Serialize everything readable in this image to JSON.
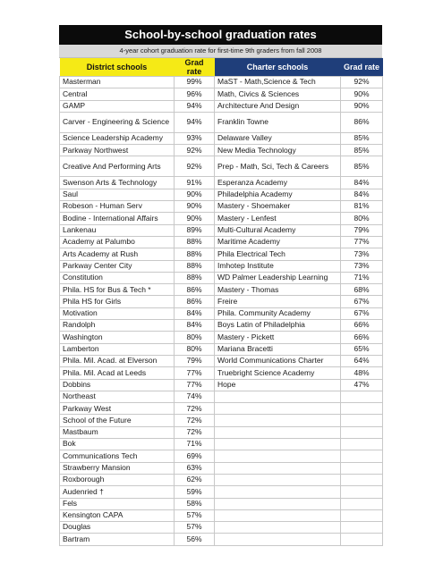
{
  "title": "School-by-school graduation rates",
  "subtitle": "4-year cohort graduation rate for first-time 9th graders from fall 2008",
  "headers": {
    "district": "District schools",
    "district_rate": "Grad rate",
    "charter": "Charter schools",
    "charter_rate": "Grad rate"
  },
  "colors": {
    "district_header": "#f5ea16",
    "charter_header": "#1f3e7a",
    "title_bar": "#0b0b0b",
    "subtitle_bar": "#d9d9d9"
  },
  "district": [
    {
      "name": "Masterman",
      "rate": "99%"
    },
    {
      "name": "Central",
      "rate": "96%"
    },
    {
      "name": "GAMP",
      "rate": "94%"
    },
    {
      "name": "Carver - Engineering & Science",
      "rate": "94%"
    },
    {
      "name": "Science Leadership Academy",
      "rate": "93%"
    },
    {
      "name": "Parkway Northwest",
      "rate": "92%"
    },
    {
      "name": "Creative And Performing Arts",
      "rate": "92%"
    },
    {
      "name": "Swenson Arts & Technology",
      "rate": "91%"
    },
    {
      "name": "Saul",
      "rate": "90%"
    },
    {
      "name": "Robeson - Human Serv",
      "rate": "90%"
    },
    {
      "name": "Bodine - International Affairs",
      "rate": "90%"
    },
    {
      "name": "Lankenau",
      "rate": "89%"
    },
    {
      "name": "Academy at Palumbo",
      "rate": "88%"
    },
    {
      "name": "Arts Academy at Rush",
      "rate": "88%"
    },
    {
      "name": "Parkway Center City",
      "rate": "88%"
    },
    {
      "name": "Constitution",
      "rate": "88%"
    },
    {
      "name": "Phila. HS for Bus & Tech *",
      "rate": "86%"
    },
    {
      "name": "Phila HS for Girls",
      "rate": "86%"
    },
    {
      "name": "Motivation",
      "rate": "84%"
    },
    {
      "name": "Randolph",
      "rate": "84%"
    },
    {
      "name": "Washington",
      "rate": "80%"
    },
    {
      "name": "Lamberton",
      "rate": "80%"
    },
    {
      "name": "Phila. Mil. Acad. at Elverson",
      "rate": "79%"
    },
    {
      "name": "Phila. Mil. Acad at Leeds",
      "rate": "77%"
    },
    {
      "name": "Dobbins",
      "rate": "77%"
    },
    {
      "name": "Northeast",
      "rate": "74%"
    },
    {
      "name": "Parkway West",
      "rate": "72%"
    },
    {
      "name": "School of the Future",
      "rate": "72%"
    },
    {
      "name": "Mastbaum",
      "rate": "72%"
    },
    {
      "name": "Bok",
      "rate": "71%"
    },
    {
      "name": "Communications Tech",
      "rate": "69%"
    },
    {
      "name": "Strawberry Mansion",
      "rate": "63%"
    },
    {
      "name": "Roxborough",
      "rate": "62%"
    },
    {
      "name": "Audenried †",
      "rate": "59%"
    },
    {
      "name": "Fels",
      "rate": "58%"
    },
    {
      "name": "Kensington CAPA",
      "rate": "57%"
    },
    {
      "name": "Douglas",
      "rate": "57%"
    },
    {
      "name": "Bartram",
      "rate": "56%"
    }
  ],
  "charter": [
    {
      "name": "MaST - Math,Science & Tech",
      "rate": "92%"
    },
    {
      "name": "Math, Civics & Sciences",
      "rate": "90%"
    },
    {
      "name": "Architecture And Design",
      "rate": "90%"
    },
    {
      "name": "Franklin Towne",
      "rate": "86%"
    },
    {
      "name": "Delaware Valley",
      "rate": "85%"
    },
    {
      "name": "New Media Technology",
      "rate": "85%"
    },
    {
      "name": "Prep - Math, Sci, Tech & Careers",
      "rate": "85%"
    },
    {
      "name": "Esperanza Academy",
      "rate": "84%"
    },
    {
      "name": "Philadelphia Academy",
      "rate": "84%"
    },
    {
      "name": "Mastery - Shoemaker",
      "rate": "81%"
    },
    {
      "name": "Mastery - Lenfest",
      "rate": "80%"
    },
    {
      "name": "Multi-Cultural Academy",
      "rate": "79%"
    },
    {
      "name": "Maritime Academy",
      "rate": "77%"
    },
    {
      "name": "Phila Electrical Tech",
      "rate": "73%"
    },
    {
      "name": "Imhotep Institute",
      "rate": "73%"
    },
    {
      "name": "WD Palmer Leadership Learning",
      "rate": "71%"
    },
    {
      "name": "Mastery - Thomas",
      "rate": "68%"
    },
    {
      "name": "Freire",
      "rate": "67%"
    },
    {
      "name": "Phila. Community Academy",
      "rate": "67%"
    },
    {
      "name": "Boys Latin of Philadelphia",
      "rate": "66%"
    },
    {
      "name": "Mastery - Pickett",
      "rate": "66%"
    },
    {
      "name": "Mariana Bracetti",
      "rate": "65%"
    },
    {
      "name": "World Communications Charter",
      "rate": "64%"
    },
    {
      "name": "Truebright Science Academy",
      "rate": "48%"
    },
    {
      "name": "Hope",
      "rate": "47%"
    }
  ]
}
